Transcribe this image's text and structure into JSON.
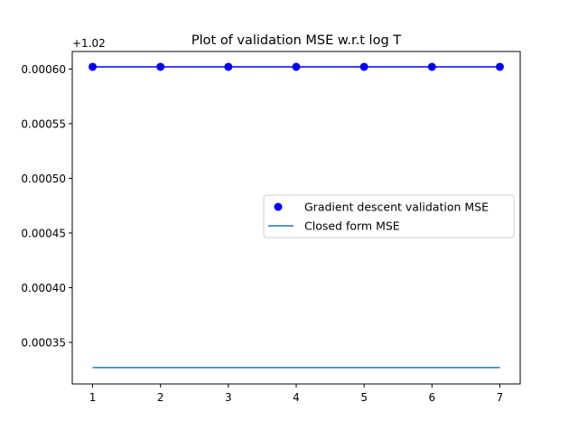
{
  "chart_data": {
    "type": "line",
    "title": "Plot of validation MSE w.r.t log T",
    "xlabel": "",
    "ylabel": "",
    "offset_label": "+1.02",
    "x": [
      1,
      2,
      3,
      4,
      5,
      6,
      7
    ],
    "xlim": [
      0.7,
      7.3
    ],
    "ylim": [
      0.000312,
      0.000616
    ],
    "x_ticks": [
      1,
      2,
      3,
      4,
      5,
      6,
      7
    ],
    "y_ticks": [
      0.00035,
      0.0004,
      0.00045,
      0.0005,
      0.00055,
      0.0006
    ],
    "y_tick_labels": [
      "0.00035",
      "0.00040",
      "0.00045",
      "0.00050",
      "0.00055",
      "0.00060"
    ],
    "grid": false,
    "legend_placement": "center-right",
    "series": [
      {
        "name": "Gradient descent validation MSE",
        "style": "line-with-markers",
        "legend_style": "marker",
        "color": "#0000ff",
        "values": [
          0.000602,
          0.000602,
          0.000602,
          0.000602,
          0.000602,
          0.000602,
          0.000602
        ]
      },
      {
        "name": "Closed form MSE",
        "style": "line",
        "legend_style": "line",
        "color": "#1f77b4",
        "values": [
          0.000327,
          0.000327,
          0.000327,
          0.000327,
          0.000327,
          0.000327,
          0.000327
        ]
      }
    ]
  }
}
